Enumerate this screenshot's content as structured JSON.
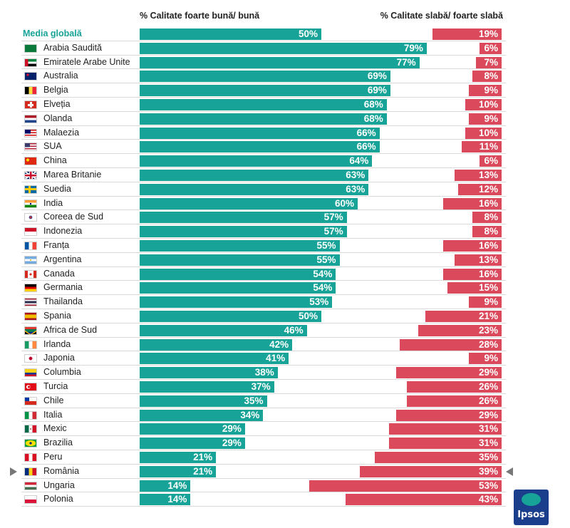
{
  "chart_data": {
    "type": "bar",
    "headers": {
      "good": "% Calitate foarte bună/ bună",
      "poor": "% Calitate slabă/ foarte slabă"
    },
    "global_label": "Media globală",
    "global": {
      "good": 50,
      "poor": 19
    },
    "countries": [
      "Arabia Saudită",
      "Emiratele Arabe Unite",
      "Australia",
      "Belgia",
      "Elveția",
      "Olanda",
      "Malaezia",
      "SUA",
      "China",
      "Marea Britanie",
      "Suedia",
      "India",
      "Coreea de Sud",
      "Indonezia",
      "Franța",
      "Argentina",
      "Canada",
      "Germania",
      "Thailanda",
      "Spania",
      "Africa de Sud",
      "Irlanda",
      "Japonia",
      "Columbia",
      "Turcia",
      "Chile",
      "Italia",
      "Mexic",
      "Brazilia",
      "Peru",
      "România",
      "Ungaria",
      "Polonia"
    ],
    "good": [
      79,
      77,
      69,
      69,
      68,
      68,
      66,
      66,
      64,
      63,
      63,
      60,
      57,
      57,
      55,
      55,
      54,
      54,
      53,
      50,
      46,
      42,
      41,
      38,
      37,
      35,
      34,
      29,
      29,
      21,
      21,
      14,
      14
    ],
    "poor": [
      6,
      7,
      8,
      9,
      10,
      9,
      10,
      11,
      6,
      13,
      12,
      16,
      8,
      8,
      16,
      13,
      16,
      15,
      9,
      21,
      23,
      28,
      9,
      29,
      26,
      26,
      29,
      31,
      31,
      35,
      39,
      53,
      43
    ],
    "highlighted": "România",
    "flags": [
      "saudi-arabia",
      "uae",
      "australia",
      "belgium",
      "switzerland",
      "netherlands",
      "malaysia",
      "usa",
      "china",
      "uk",
      "sweden",
      "india",
      "south-korea",
      "indonesia",
      "france",
      "argentina",
      "canada",
      "germany",
      "thailand",
      "spain",
      "south-africa",
      "ireland",
      "japan",
      "colombia",
      "turkey",
      "chile",
      "italy",
      "mexico",
      "brazil",
      "peru",
      "romania",
      "hungary",
      "poland"
    ],
    "colors": {
      "good": "#17a398",
      "poor": "#db4a5c",
      "global_label": "#17a398"
    }
  },
  "logo_text": "Ipsos"
}
